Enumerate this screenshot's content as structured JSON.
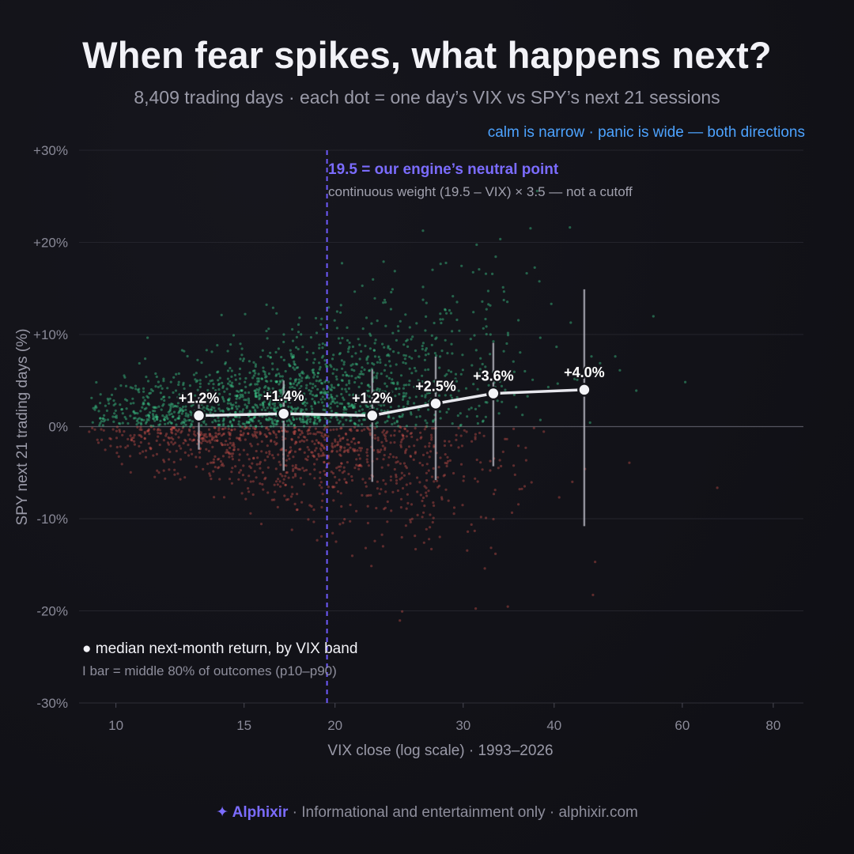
{
  "header": {
    "title": "When fear spikes, what happens next?",
    "subtitle": "8,409 trading days · each dot = one day’s VIX vs SPY’s next 21 sessions",
    "corner_note": "calm is narrow · panic is wide — both directions"
  },
  "annotation": {
    "neutral_title": "19.5 = our engine’s neutral point",
    "neutral_sub": "continuous weight (19.5 – VIX) × 3.5 — not a cutoff",
    "legend_median": "● median next-month return, by VIX band",
    "legend_bar": "I bar = middle 80% of outcomes (p10–p90)"
  },
  "footer": {
    "brand": "✦ Alphixir",
    "rest": " · Informational and entertainment only · alphixir.com"
  },
  "colors": {
    "background": "#121218",
    "positive_dot": "#3fd18f",
    "negative_dot": "#d9574f",
    "neutral_line": "#6f5bff",
    "median_line": "#e8e8ee",
    "accent_blue": "#4da3ff"
  },
  "chart_data": {
    "type": "scatter",
    "x_scale": "log",
    "xlabel": "VIX close (log scale) · 1993–2026",
    "ylabel": "SPY next 21 trading days (%)",
    "xlim": [
      8.9,
      88
    ],
    "ylim": [
      -30,
      30
    ],
    "x_ticks": [
      10,
      15,
      20,
      30,
      40,
      60,
      80
    ],
    "y_ticks": [
      30,
      20,
      10,
      0,
      -10,
      -20,
      -30
    ],
    "y_tick_labels": [
      "+30%",
      "+20%",
      "+10%",
      "0%",
      "-10%",
      "-20%",
      "-30%"
    ],
    "grid": true,
    "neutral_vix": 19.5,
    "scatter_count": 8409,
    "medians": [
      {
        "x": 13,
        "y": 1.2,
        "label": "+1.2%",
        "p10": -2.5,
        "p90": 3.5
      },
      {
        "x": 17,
        "y": 1.4,
        "label": "+1.4%",
        "p10": -4.8,
        "p90": 5.0
      },
      {
        "x": 22.5,
        "y": 1.2,
        "label": "+1.2%",
        "p10": -6.0,
        "p90": 6.2
      },
      {
        "x": 27.5,
        "y": 2.5,
        "label": "+2.5%",
        "p10": -5.8,
        "p90": 7.6
      },
      {
        "x": 33,
        "y": 3.6,
        "label": "+3.6%",
        "p10": -4.3,
        "p90": 9.1
      },
      {
        "x": 44,
        "y": 4.0,
        "label": "+4.0%",
        "p10": -10.8,
        "p90": 14.9
      }
    ]
  }
}
